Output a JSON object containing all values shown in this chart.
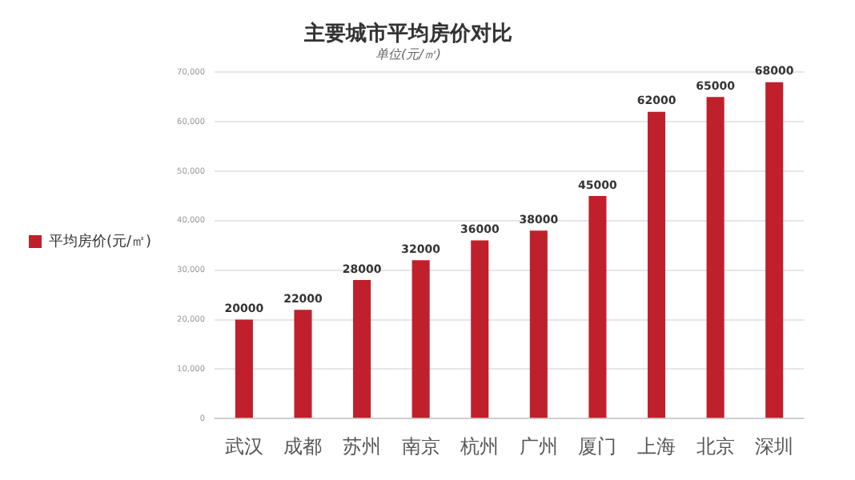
{
  "chart_data": {
    "type": "bar",
    "title": "主要城市平均房价对比",
    "subtitle": "单位(元/㎡)",
    "categories": [
      "武汉",
      "成都",
      "苏州",
      "南京",
      "杭州",
      "广州",
      "厦门",
      "上海",
      "北京",
      "深圳"
    ],
    "series": [
      {
        "name": "平均房价(元/㎡)",
        "color": "#c0202b",
        "values": [
          20000,
          22000,
          28000,
          32000,
          36000,
          38000,
          45000,
          62000,
          65000,
          68000
        ]
      }
    ],
    "ylim": [
      0,
      70000
    ],
    "yticks": [
      {
        "value": 0,
        "label": "0"
      },
      {
        "value": 10000,
        "label": "10,000"
      },
      {
        "value": 20000,
        "label": "20,000"
      },
      {
        "value": 30000,
        "label": "30,000"
      },
      {
        "value": 40000,
        "label": "40,000"
      },
      {
        "value": 50000,
        "label": "50,000"
      },
      {
        "value": 60000,
        "label": "60,000"
      },
      {
        "value": 70000,
        "label": "70,000"
      }
    ],
    "grid": "y",
    "legend": "left",
    "data_labels": true
  }
}
